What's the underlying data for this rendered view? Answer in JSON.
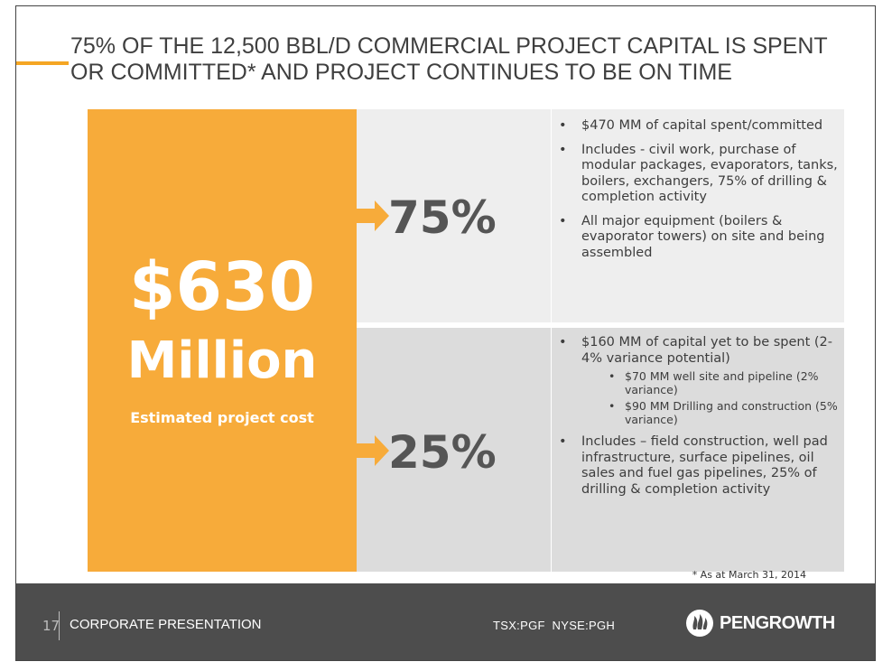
{
  "title": "75% OF THE 12,500 BBL/D COMMERCIAL PROJECT CAPITAL IS SPENT OR COMMITTED* AND PROJECT CONTINUES TO BE ON TIME",
  "cost": {
    "amount": "$630",
    "unit": "Million",
    "caption": "Estimated project cost"
  },
  "spent": {
    "percent": "75%",
    "bullets": [
      "$470 MM of capital spent/committed",
      "Includes -  civil work, purchase of modular packages, evaporators, tanks, boilers, exchangers, 75% of drilling & completion activity",
      "All major equipment (boilers & evaporator towers) on site and being assembled"
    ]
  },
  "remaining": {
    "percent": "25%",
    "bullet1": "$160 MM of capital yet to be spent (2-4% variance potential)",
    "sub_bullets": [
      "$70 MM well site and pipeline (2% variance)",
      "$90 MM Drilling and construction (5% variance)"
    ],
    "bullet2": "Includes – field construction, well pad infrastructure, surface pipelines, oil sales and fuel gas pipelines, 25% of drilling & completion activity"
  },
  "footnote": "* As at March 31, 2014",
  "footer": {
    "page_number": "17",
    "section": "CORPORATE PRESENTATION",
    "tickers": "TSX:PGF  NYSE:PGH",
    "logo_text": "PENGROWTH",
    "logo_icon": "pengrowth-flame-icon"
  },
  "colors": {
    "accent": "#f7ab3a",
    "footer_bg": "#4d4d4d",
    "panel_light": "#eeeeee",
    "panel_dark": "#dcdcdc"
  }
}
